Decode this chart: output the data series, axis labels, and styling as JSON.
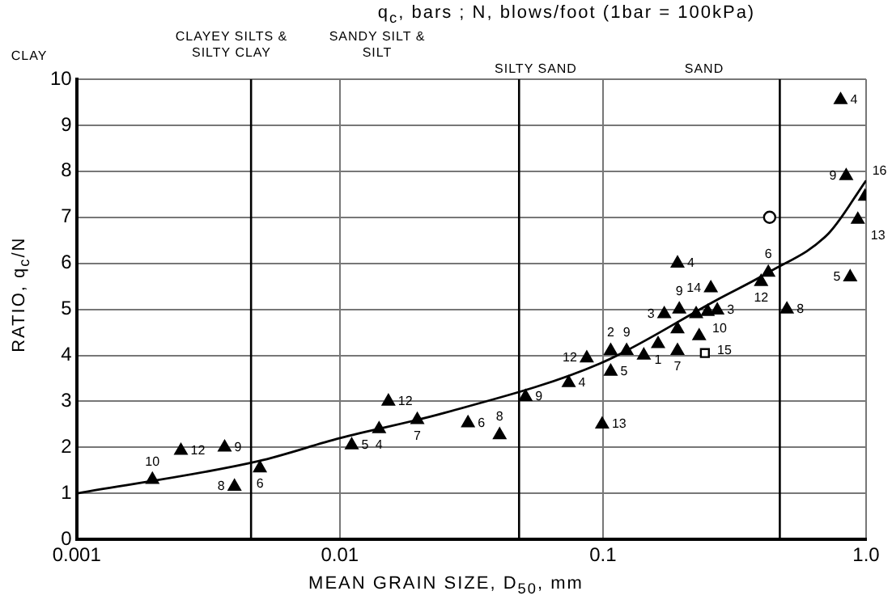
{
  "chart_data": {
    "type": "scatter",
    "title": "q$_{c}$, bars ; N, blows/foot (1bar = 100kPa)",
    "xlabel": "MEAN GRAIN SIZE, D$_{50}$, mm",
    "ylabel": "RATIO, q$_{c}$/N",
    "log": "x",
    "xlim": [
      0.001,
      1
    ],
    "xticks": [
      0.001,
      0.01,
      0.1,
      {
        "value": 1,
        "label": "1.0"
      }
    ],
    "ylim": [
      0,
      10
    ],
    "yticks": [
      0,
      1,
      2,
      3,
      4,
      5,
      6,
      7,
      8,
      9,
      10
    ],
    "grid": true,
    "legend": false,
    "ref_lines": [
      {
        "axis": "x",
        "value": 0.0046,
        "color": "#000000"
      },
      {
        "axis": "x",
        "value": 0.048,
        "color": "#000000"
      },
      {
        "axis": "x",
        "value": 0.47,
        "color": "#000000"
      }
    ],
    "series": [
      {
        "type": "scatter",
        "marker": "triangle",
        "color": "#000000",
        "x": [
          0.00194,
          0.00249,
          0.00365,
          0.00398,
          0.00497,
          0.0111,
          0.0141,
          0.0153,
          0.0197,
          0.0307,
          0.0405,
          0.0508,
          0.0741,
          0.0868,
          0.107,
          0.107,
          0.0993,
          0.123,
          0.143,
          0.162,
          0.192,
          0.171,
          0.195,
          0.192,
          0.232,
          0.226,
          0.25,
          0.272,
          0.257,
          0.192,
          0.399,
          0.425,
          0.5,
          0.87,
          0.99,
          0.93,
          0.8,
          0.84
        ],
        "values": [
          1.3,
          1.93,
          2.0,
          1.15,
          1.55,
          2.05,
          2.4,
          3.0,
          2.6,
          2.53,
          2.27,
          3.1,
          3.4,
          3.94,
          4.1,
          3.65,
          2.5,
          4.1,
          4.0,
          4.25,
          4.1,
          4.9,
          5.0,
          4.57,
          4.42,
          4.9,
          4.95,
          4.98,
          5.46,
          6.0,
          5.6,
          5.8,
          5.0,
          5.7,
          7.45,
          6.95,
          9.55,
          7.9
        ]
      },
      {
        "type": "scatter",
        "marker": "circle",
        "color": "#000000",
        "x": [
          0.43
        ],
        "values": [
          7.0
        ]
      },
      {
        "type": "scatter",
        "marker": "square",
        "color": "#000000",
        "x": [
          0.244
        ],
        "values": [
          4.05
        ]
      },
      {
        "type": "line",
        "marker": "none",
        "color": "#000000",
        "x": [
          0.001,
          0.0049,
          0.01,
          0.025,
          0.098,
          0.27,
          0.425,
          0.72,
          1.0
        ],
        "values": [
          1.0,
          1.7,
          2.2,
          2.75,
          3.83,
          5.2,
          5.8,
          6.65,
          7.8
        ]
      }
    ],
    "annotations": [
      "CLAY",
      "CLAYEY SILTS & SILTY CLAY",
      "SANDY SILT & SILT",
      "SILTY SAND",
      "SAND",
      {
        "text": "10",
        "x": 0.00194,
        "y": 1.3
      },
      {
        "text": "12",
        "x": 0.00249,
        "y": 1.93
      },
      {
        "text": "9",
        "x": 0.00365,
        "y": 2.0
      },
      {
        "text": "8",
        "x": 0.00398,
        "y": 1.15
      },
      {
        "text": "6",
        "x": 0.00497,
        "y": 1.55
      },
      {
        "text": "5",
        "x": 0.0111,
        "y": 2.05
      },
      {
        "text": "4",
        "x": 0.0141,
        "y": 2.4
      },
      {
        "text": "12",
        "x": 0.0153,
        "y": 3.0
      },
      {
        "text": "7",
        "x": 0.0197,
        "y": 2.6
      },
      {
        "text": "6",
        "x": 0.0307,
        "y": 2.53
      },
      {
        "text": "8",
        "x": 0.0405,
        "y": 2.27
      },
      {
        "text": "9",
        "x": 0.0508,
        "y": 3.1
      },
      {
        "text": "4",
        "x": 0.0741,
        "y": 3.4
      },
      {
        "text": "12",
        "x": 0.0868,
        "y": 3.94
      },
      {
        "text": "2",
        "x": 0.107,
        "y": 4.1
      },
      {
        "text": "5",
        "x": 0.107,
        "y": 3.65
      },
      {
        "text": "13",
        "x": 0.0993,
        "y": 2.5
      },
      {
        "text": "9",
        "x": 0.123,
        "y": 4.1
      },
      {
        "text": "1",
        "x": 0.162,
        "y": 4.25
      },
      {
        "text": "7",
        "x": 0.192,
        "y": 4.1
      },
      {
        "text": "3",
        "x": 0.171,
        "y": 4.9
      },
      {
        "text": "9",
        "x": 0.195,
        "y": 5.0
      },
      {
        "text": "10",
        "x": 0.192,
        "y": 4.57
      },
      {
        "text": "15",
        "x": 0.232,
        "y": 4.42
      },
      {
        "text": "3",
        "x": 0.272,
        "y": 4.98
      },
      {
        "text": "14",
        "x": 0.257,
        "y": 5.46
      },
      {
        "text": "4",
        "x": 0.192,
        "y": 6.0
      },
      {
        "text": "12",
        "x": 0.399,
        "y": 5.6
      },
      {
        "text": "6",
        "x": 0.425,
        "y": 5.8
      },
      {
        "text": "8",
        "x": 0.5,
        "y": 5.0
      },
      {
        "text": "5",
        "x": 0.87,
        "y": 5.7
      },
      {
        "text": "16",
        "x": 0.99,
        "y": 7.45
      },
      {
        "text": "13",
        "x": 0.93,
        "y": 6.95
      },
      {
        "text": "4",
        "x": 0.8,
        "y": 9.55
      },
      {
        "text": "9",
        "x": 0.84,
        "y": 7.9
      }
    ]
  }
}
